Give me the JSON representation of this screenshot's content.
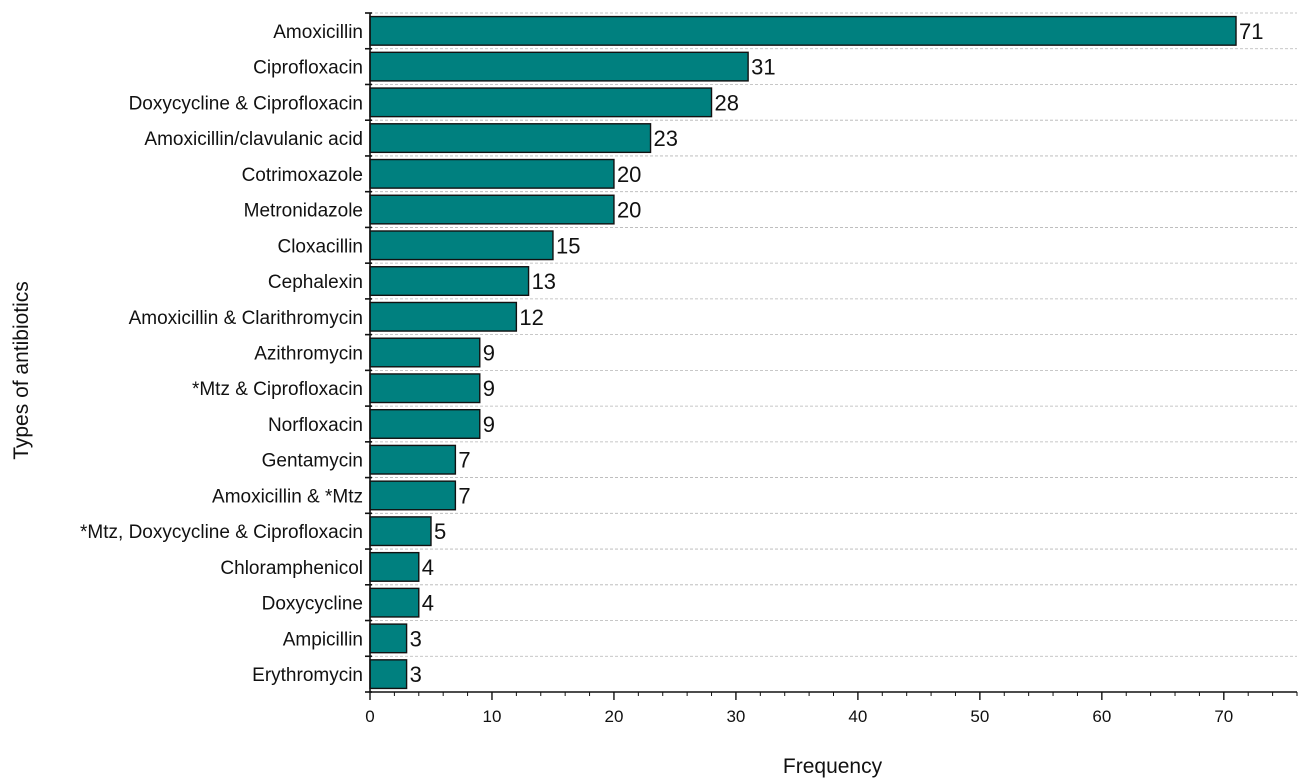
{
  "chart_data": {
    "type": "bar",
    "orientation": "horizontal",
    "categories": [
      "Amoxicillin",
      "Ciprofloxacin",
      "Doxycycline & Ciprofloxacin",
      "Amoxicillin/clavulanic acid",
      "Cotrimoxazole",
      "Metronidazole",
      "Cloxacillin",
      "Cephalexin",
      "Amoxicillin & Clarithromycin",
      "Azithromycin",
      "*Mtz & Ciprofloxacin",
      "Norfloxacin",
      "Gentamycin",
      "Amoxicillin & *Mtz",
      "*Mtz, Doxycycline & Ciprofloxacin",
      "Chloramphenicol",
      "Doxycycline",
      "Ampicillin",
      "Erythromycin"
    ],
    "values": [
      71,
      31,
      28,
      23,
      20,
      20,
      15,
      13,
      12,
      9,
      9,
      9,
      7,
      7,
      5,
      4,
      4,
      3,
      3
    ],
    "xlabel": "Frequency",
    "ylabel": "Types of antibiotics",
    "xlim": [
      0,
      76
    ],
    "xticks": [
      0,
      10,
      20,
      30,
      40,
      50,
      60,
      70
    ],
    "grid": "horizontal dashed",
    "bar_color": "#00807f",
    "data_labels": true
  }
}
